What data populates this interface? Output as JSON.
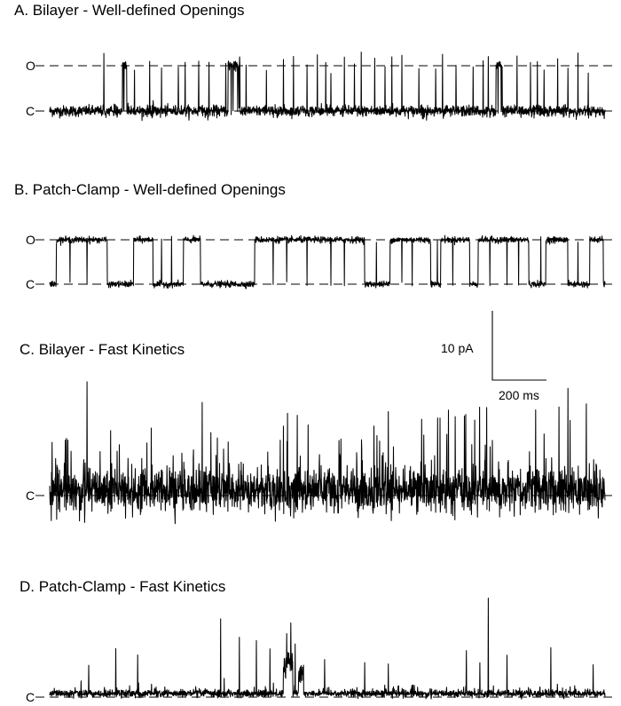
{
  "scale_bar": {
    "current": "10 pA",
    "time": "200 ms",
    "current_pA": 10,
    "time_ms": 200
  },
  "panels": [
    {
      "title": "A. Bilayer - Well-defined Openings",
      "levels": [
        {
          "label": "O"
        },
        {
          "label": "C"
        }
      ]
    },
    {
      "title": "B. Patch-Clamp - Well-defined Openings",
      "levels": [
        {
          "label": "O"
        },
        {
          "label": "C"
        }
      ]
    },
    {
      "title": "C. Bilayer - Fast Kinetics",
      "levels": [
        {
          "label": "C"
        }
      ]
    },
    {
      "title": "D. Patch-Clamp - Fast Kinetics",
      "levels": [
        {
          "label": "C"
        }
      ]
    }
  ],
  "chart_data": [
    {
      "type": "line",
      "title": "A. Bilayer - Well-defined Openings",
      "xlabel": "",
      "ylabel": "",
      "x_unit": "ms",
      "y_unit": "pA",
      "x_range": [
        0,
        1640
      ],
      "levels": {
        "C": 0,
        "O": 13
      },
      "noise_pA": 1.3,
      "series": [
        {
          "open_bursts": [
            [
              215,
              228
            ],
            [
              527,
              562
            ],
            [
              1318,
              1338
            ]
          ],
          "brief_openings": [
            160,
            250,
            295,
            330,
            380,
            400,
            440,
            470,
            520,
            580,
            640,
            690,
            720,
            760,
            790,
            815,
            830,
            870,
            900,
            920,
            960,
            990,
            1010,
            1040,
            1090,
            1140,
            1160,
            1200,
            1250,
            1280,
            1295,
            1380,
            1420,
            1440,
            1460,
            1500,
            1530,
            1560,
            1590
          ]
        }
      ]
    },
    {
      "type": "line",
      "title": "B. Patch-Clamp - Well-defined Openings",
      "xlabel": "",
      "ylabel": "",
      "x_unit": "ms",
      "y_unit": "pA",
      "x_range": [
        0,
        1640
      ],
      "levels": {
        "C": 0,
        "O": 13
      },
      "noise_pA": 0.8,
      "series": [
        {
          "open_intervals": [
            [
              20,
              170
            ],
            [
              248,
              305
            ],
            [
              395,
              445
            ],
            [
              605,
              930
            ],
            [
              1005,
              1125
            ],
            [
              1155,
              1240
            ],
            [
              1265,
              1415
            ],
            [
              1465,
              1530
            ],
            [
              1595,
              1635
            ]
          ],
          "brief_closures": [
            60,
            110,
            660,
            700,
            760,
            830,
            870,
            1040,
            1070,
            1190,
            1300,
            1350,
            1385
          ],
          "brief_openings": [
            330,
            360,
            965,
            1145,
            1450,
            1560
          ]
        }
      ]
    },
    {
      "type": "line",
      "title": "C. Bilayer - Fast Kinetics",
      "xlabel": "",
      "ylabel": "",
      "x_unit": "ms",
      "y_unit": "pA",
      "x_range": [
        0,
        1640
      ],
      "levels": {
        "C": 0
      },
      "noise_pA": 2.8,
      "series": [
        {
          "tall_spikes": [
            [
              110,
              16.5
            ],
            [
              180,
              10.5
            ],
            [
              300,
              7
            ],
            [
              450,
              14.5
            ],
            [
              495,
              13
            ],
            [
              690,
              9
            ],
            [
              740,
              7
            ],
            [
              860,
              6
            ],
            [
              1000,
              12
            ],
            [
              1105,
              9.5
            ],
            [
              1225,
              11.5
            ],
            [
              1255,
              9
            ],
            [
              1290,
              11.5
            ],
            [
              1435,
              11
            ],
            [
              1460,
              10
            ],
            [
              1530,
              12
            ],
            [
              1585,
              14
            ]
          ]
        }
      ]
    },
    {
      "type": "line",
      "title": "D. Patch-Clamp - Fast Kinetics",
      "xlabel": "",
      "ylabel": "",
      "x_unit": "ms",
      "y_unit": "pA",
      "x_range": [
        0,
        1640
      ],
      "levels": {
        "C": 0
      },
      "noise_pA": 0.5,
      "series": [
        {
          "bursts": [
            [
              690,
              718,
              7
            ],
            [
              735,
              750,
              5
            ]
          ],
          "tall_spikes": [
            [
              115,
              5
            ],
            [
              195,
              7.5
            ],
            [
              260,
              6
            ],
            [
              505,
              12.5
            ],
            [
              560,
              9.5
            ],
            [
              610,
              8.5
            ],
            [
              650,
              8
            ],
            [
              700,
              10
            ],
            [
              712,
              11.5
            ],
            [
              725,
              8
            ],
            [
              812,
              6
            ],
            [
              930,
              5.5
            ],
            [
              1000,
              5
            ],
            [
              1230,
              7
            ],
            [
              1270,
              5.5
            ],
            [
              1295,
              15.5
            ],
            [
              1350,
              6.5
            ],
            [
              1480,
              7.5
            ],
            [
              1605,
              5
            ]
          ]
        }
      ]
    }
  ]
}
